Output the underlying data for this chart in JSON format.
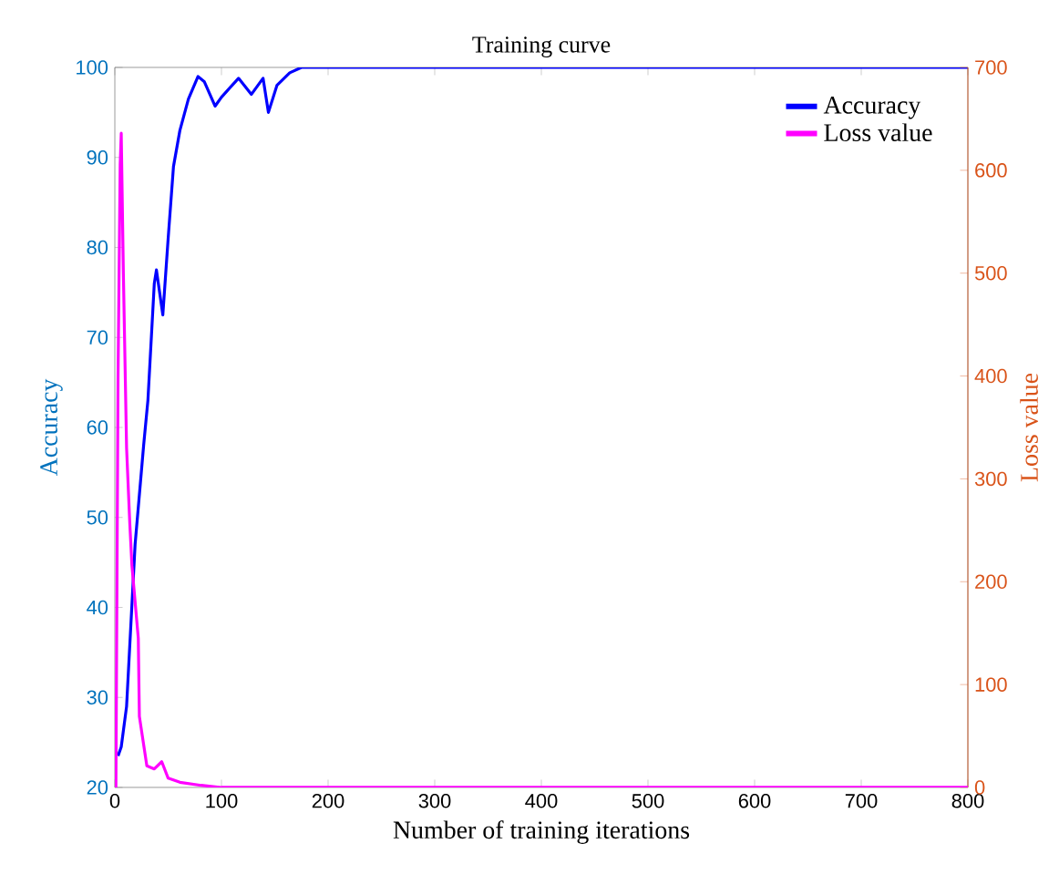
{
  "chart_data": {
    "type": "line",
    "title": "Training curve",
    "xlabel": "Number of training iterations",
    "ylabel": "Accuracy",
    "y2label": "Loss value",
    "xlim": [
      0,
      800
    ],
    "xticks": [
      0,
      100,
      200,
      300,
      400,
      500,
      600,
      700,
      800
    ],
    "ylim": [
      20,
      100
    ],
    "yticks": [
      20,
      30,
      40,
      50,
      60,
      70,
      80,
      90,
      100
    ],
    "y2lim": [
      0,
      700
    ],
    "y2ticks": [
      0,
      100,
      200,
      300,
      400,
      500,
      600,
      700
    ],
    "legend": "top right",
    "marker": "none",
    "line_style": "solid",
    "series": [
      {
        "name": "Accuracy",
        "color": "#0000ff",
        "x": [
          3,
          6,
          11,
          19,
          27,
          31,
          37,
          39,
          45,
          50,
          55,
          61,
          69,
          78,
          84,
          94,
          100,
          116,
          128,
          139,
          144,
          152,
          164,
          175,
          200,
          300,
          400,
          500,
          600,
          700,
          800
        ],
        "values": [
          23.5,
          24.5,
          29,
          47,
          58,
          63,
          76,
          77.5,
          72.5,
          81,
          89,
          93,
          96.5,
          99,
          98.4,
          95.7,
          96.7,
          98.8,
          97,
          98.8,
          95,
          98,
          99.4,
          100,
          100,
          100,
          100,
          100,
          100,
          100,
          100
        ]
      },
      {
        "name": "Loss value",
        "color": "#ff00ff",
        "axis": "y2",
        "x": [
          1,
          3,
          5,
          6,
          8,
          11,
          14,
          16,
          22,
          23,
          30,
          37,
          44,
          50,
          61,
          81,
          100,
          200,
          300,
          400,
          500,
          600,
          700,
          800
        ],
        "values": [
          0,
          400,
          606,
          636,
          500,
          330,
          257,
          216,
          145,
          69,
          21,
          18,
          25,
          9,
          5,
          2,
          0,
          0,
          0,
          0,
          0,
          0,
          0,
          0
        ]
      }
    ]
  }
}
